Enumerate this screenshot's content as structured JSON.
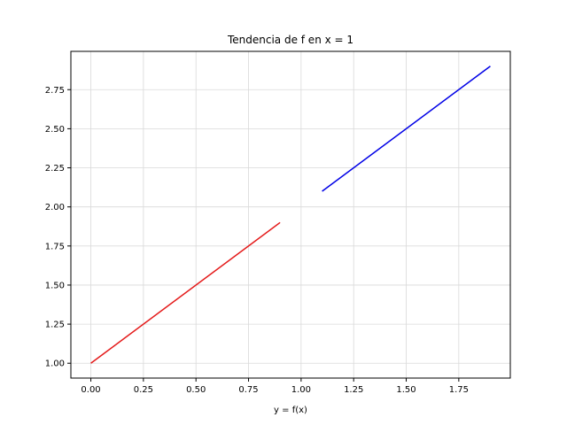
{
  "chart_data": {
    "type": "line",
    "title": "Tendencia de f en x = 1",
    "xlabel": "y = f(x)",
    "ylabel": "",
    "xlim": [
      -0.095,
      1.995
    ],
    "ylim": [
      0.905,
      2.995
    ],
    "xticks": [
      0.0,
      0.25,
      0.5,
      0.75,
      1.0,
      1.25,
      1.5,
      1.75
    ],
    "xtick_labels": [
      "0.00",
      "0.25",
      "0.50",
      "0.75",
      "1.00",
      "1.25",
      "1.50",
      "1.75"
    ],
    "yticks": [
      1.0,
      1.25,
      1.5,
      1.75,
      2.0,
      2.25,
      2.5,
      2.75
    ],
    "ytick_labels": [
      "1.00",
      "1.25",
      "1.50",
      "1.75",
      "2.00",
      "2.25",
      "2.50",
      "2.75"
    ],
    "grid": true,
    "series": [
      {
        "color": "#e41a1a",
        "x": [
          0.0,
          0.9
        ],
        "y": [
          1.0,
          1.9
        ]
      },
      {
        "color": "#0000e6",
        "x": [
          1.1,
          1.9
        ],
        "y": [
          2.1,
          2.9
        ]
      }
    ]
  }
}
